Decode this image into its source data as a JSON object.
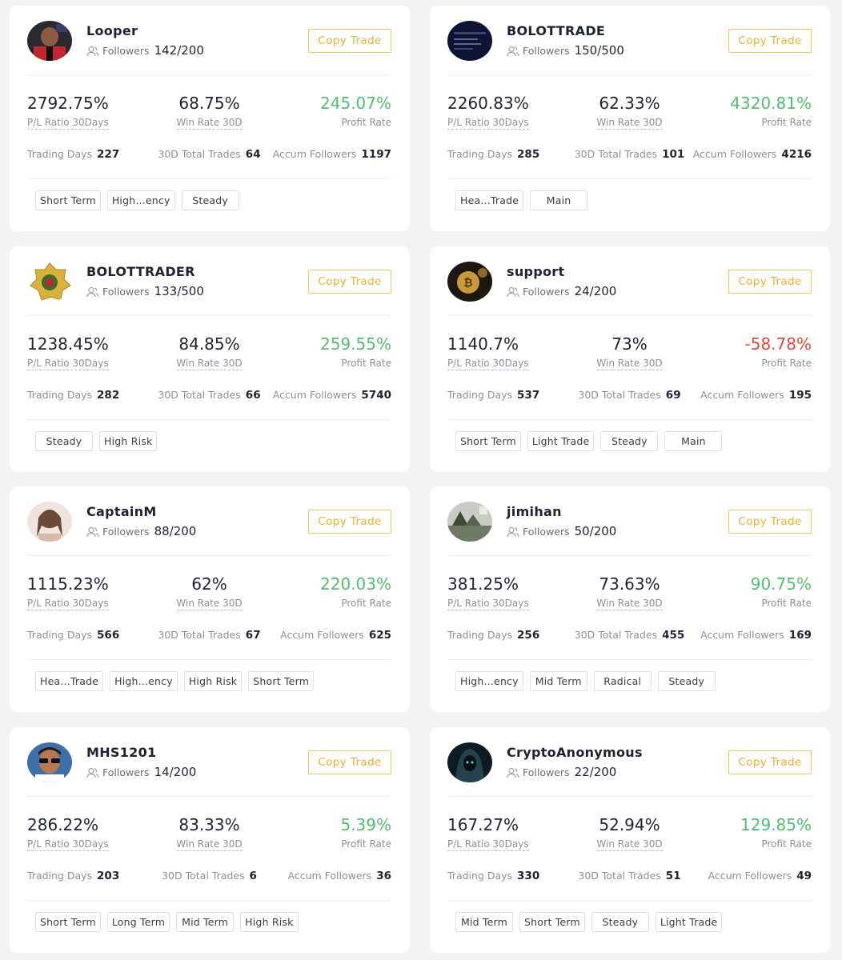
{
  "labels": {
    "followers": "Followers",
    "copy_trade": "Copy Trade",
    "pl_ratio": "P/L Ratio 30Days",
    "win_rate": "Win Rate 30D",
    "profit_rate": "Profit Rate",
    "trading_days": "Trading Days",
    "total_trades": "30D Total Trades",
    "accum_followers": "Accum Followers"
  },
  "colors": {
    "positive": "#4fbf6e",
    "negative": "#e2463e",
    "accent": "#eab12f"
  },
  "traders": [
    {
      "name": "Looper",
      "followers": "142/200",
      "pl_ratio": "2792.75%",
      "win_rate": "68.75%",
      "profit_rate": "245.07%",
      "profit_sign": "pos",
      "trading_days": "227",
      "total_trades": "64",
      "accum_followers": "1197",
      "tags": [
        "Short Term",
        "High...ency",
        "Steady"
      ],
      "avatar": "football-player-avatar"
    },
    {
      "name": "BOLOTTRADE",
      "followers": "150/500",
      "pl_ratio": "2260.83%",
      "win_rate": "62.33%",
      "profit_rate": "4320.81%",
      "profit_sign": "pos",
      "trading_days": "285",
      "total_trades": "101",
      "accum_followers": "4216",
      "tags": [
        "Hea...Trade",
        "Main"
      ],
      "avatar": "dark-screen-avatar"
    },
    {
      "name": "BOLOTTRADER",
      "followers": "133/500",
      "pl_ratio": "1238.45%",
      "win_rate": "84.85%",
      "profit_rate": "259.55%",
      "profit_sign": "pos",
      "trading_days": "282",
      "total_trades": "66",
      "accum_followers": "5740",
      "tags": [
        "Steady",
        "High Risk"
      ],
      "avatar": "gold-badge-avatar"
    },
    {
      "name": "support",
      "followers": "24/200",
      "pl_ratio": "1140.7%",
      "win_rate": "73%",
      "profit_rate": "-58.78%",
      "profit_sign": "neg",
      "trading_days": "537",
      "total_trades": "69",
      "accum_followers": "195",
      "tags": [
        "Short Term",
        "Light Trade",
        "Steady",
        "Main"
      ],
      "avatar": "bitcoin-avatar"
    },
    {
      "name": "CaptainM",
      "followers": "88/200",
      "pl_ratio": "1115.23%",
      "win_rate": "62%",
      "profit_rate": "220.03%",
      "profit_sign": "pos",
      "trading_days": "566",
      "total_trades": "67",
      "accum_followers": "625",
      "tags": [
        "Hea...Trade",
        "High...ency",
        "High Risk",
        "Short Term"
      ],
      "avatar": "portrait-avatar"
    },
    {
      "name": "jimihan",
      "followers": "50/200",
      "pl_ratio": "381.25%",
      "win_rate": "73.63%",
      "profit_rate": "90.75%",
      "profit_sign": "pos",
      "trading_days": "256",
      "total_trades": "455",
      "accum_followers": "169",
      "tags": [
        "High...ency",
        "Mid Term",
        "Radical",
        "Steady"
      ],
      "avatar": "landscape-avatar"
    },
    {
      "name": "MHS1201",
      "followers": "14/200",
      "pl_ratio": "286.22%",
      "win_rate": "83.33%",
      "profit_rate": "5.39%",
      "profit_sign": "pos",
      "trading_days": "203",
      "total_trades": "6",
      "accum_followers": "36",
      "tags": [
        "Short Term",
        "Long Term",
        "Mid Term",
        "High Risk"
      ],
      "avatar": "sunglasses-avatar"
    },
    {
      "name": "CryptoAnonymous",
      "followers": "22/200",
      "pl_ratio": "167.27%",
      "win_rate": "52.94%",
      "profit_rate": "129.85%",
      "profit_sign": "pos",
      "trading_days": "330",
      "total_trades": "51",
      "accum_followers": "49",
      "tags": [
        "Mid Term",
        "Short Term",
        "Steady",
        "Light Trade"
      ],
      "avatar": "hooded-figure-avatar"
    }
  ]
}
